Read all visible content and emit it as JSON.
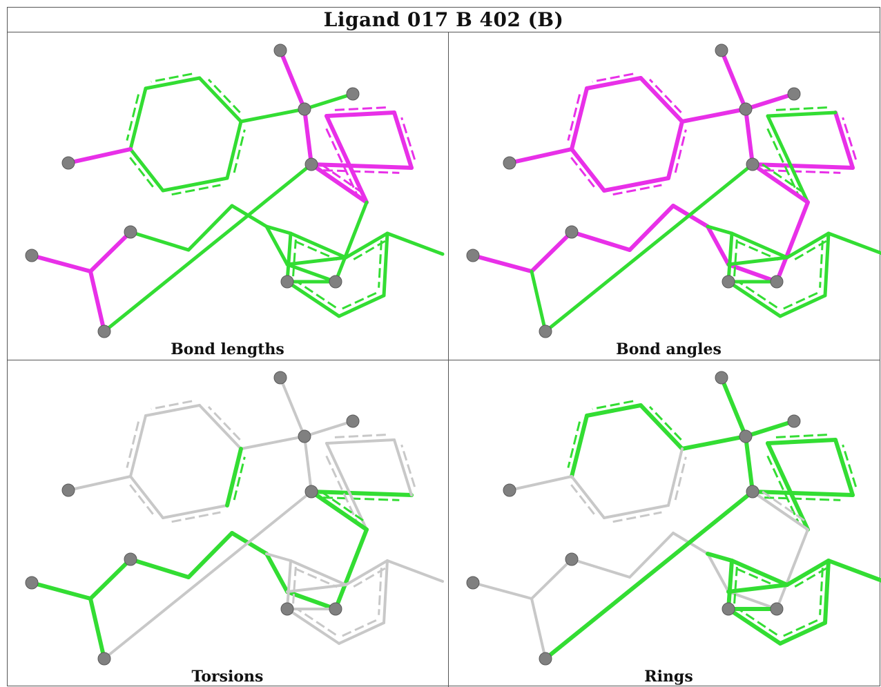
{
  "title": "Ligand 017 B 402 (B)",
  "panels": [
    {
      "caption": "Bond lengths",
      "highlight": "#e830e8",
      "highlighted_bonds": [
        1,
        10,
        11,
        12,
        13,
        14,
        15,
        16,
        17,
        24,
        25,
        26
      ]
    },
    {
      "caption": "Bond angles",
      "highlight": "#e830e8",
      "highlighted_bonds": [
        1,
        2,
        3,
        4,
        5,
        6,
        7,
        8,
        9,
        10,
        11,
        12,
        13,
        17,
        18,
        19,
        20,
        21,
        22,
        23,
        24,
        25
      ]
    },
    {
      "caption": "Torsions",
      "highlight": "#33dd33",
      "highlighted_bonds": [
        9,
        12,
        16,
        17,
        18,
        19,
        20,
        21,
        22,
        23,
        24,
        25,
        26
      ]
    },
    {
      "caption": "Rings",
      "highlight": "#33dd33",
      "highlighted_bonds": [
        1,
        2,
        3,
        4,
        5,
        6,
        11,
        12,
        13,
        14,
        15,
        27,
        28,
        29,
        30,
        31,
        32,
        33,
        34,
        35,
        36,
        37
      ]
    }
  ],
  "colors": {
    "ok": "#33dd33",
    "outlier": "#e830e8",
    "neutral": "#c8c8c8",
    "atom": "#808080"
  }
}
